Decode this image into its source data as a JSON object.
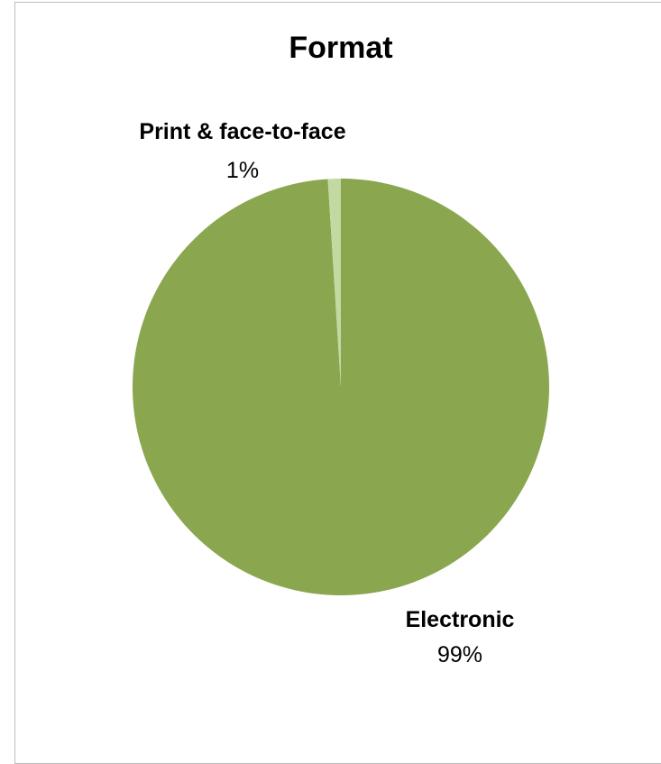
{
  "chart_data": {
    "type": "pie",
    "title": "Format",
    "categories": [
      "Electronic",
      "Print & face-to-face"
    ],
    "values": [
      99,
      1
    ],
    "value_labels": [
      "99%",
      "1%"
    ],
    "colors": [
      "#8aa64e",
      "#c4d9a1"
    ],
    "legend": "none",
    "data_labels": "outside"
  }
}
